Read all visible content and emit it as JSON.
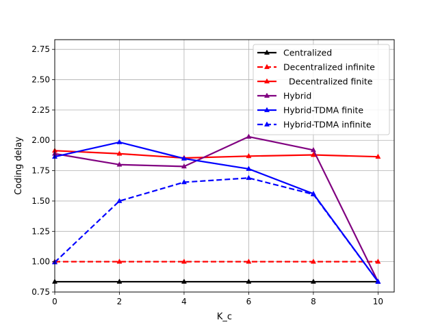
{
  "chart_data": {
    "type": "line",
    "title": "",
    "xlabel": "K_c",
    "ylabel": "Coding delay",
    "xlim": [
      0,
      10.5
    ],
    "ylim": [
      0.75,
      2.83
    ],
    "xticks": [
      0,
      2,
      4,
      6,
      8,
      10
    ],
    "yticks": [
      0.75,
      1.0,
      1.25,
      1.5,
      1.75,
      2.0,
      2.25,
      2.5,
      2.75
    ],
    "ytick_labels": [
      "0.75",
      "1.00",
      "1.25",
      "1.50",
      "1.75",
      "2.00",
      "2.25",
      "2.50",
      "2.75"
    ],
    "grid": true,
    "legend_position": "top-right",
    "x": [
      0,
      2,
      4,
      6,
      8,
      10
    ],
    "series": [
      {
        "name": "Centralized",
        "values": [
          0.835,
          0.835,
          0.835,
          0.835,
          0.835,
          0.835
        ],
        "color": "#000000",
        "style": "solid"
      },
      {
        "name": "Decentralized infinite",
        "values": [
          1.0,
          1.0,
          1.0,
          1.0,
          1.0,
          1.0
        ],
        "color": "#ff0000",
        "style": "dashed"
      },
      {
        "name": "  Decentralized finite",
        "values": [
          1.915,
          1.89,
          1.855,
          1.87,
          1.88,
          1.865
        ],
        "color": "#ff0000",
        "style": "solid"
      },
      {
        "name": "Hybrid",
        "values": [
          1.89,
          1.8,
          1.785,
          2.03,
          1.92,
          0.835
        ],
        "color": "#800080",
        "style": "solid"
      },
      {
        "name": "Hybrid-TDMA finite",
        "values": [
          1.865,
          1.985,
          1.85,
          1.765,
          1.56,
          0.835
        ],
        "color": "#0000ff",
        "style": "solid"
      },
      {
        "name": "Hybrid-TDMA infinite",
        "values": [
          0.995,
          1.5,
          1.655,
          1.69,
          1.555,
          0.835
        ],
        "color": "#0000ff",
        "style": "dashed"
      }
    ]
  }
}
